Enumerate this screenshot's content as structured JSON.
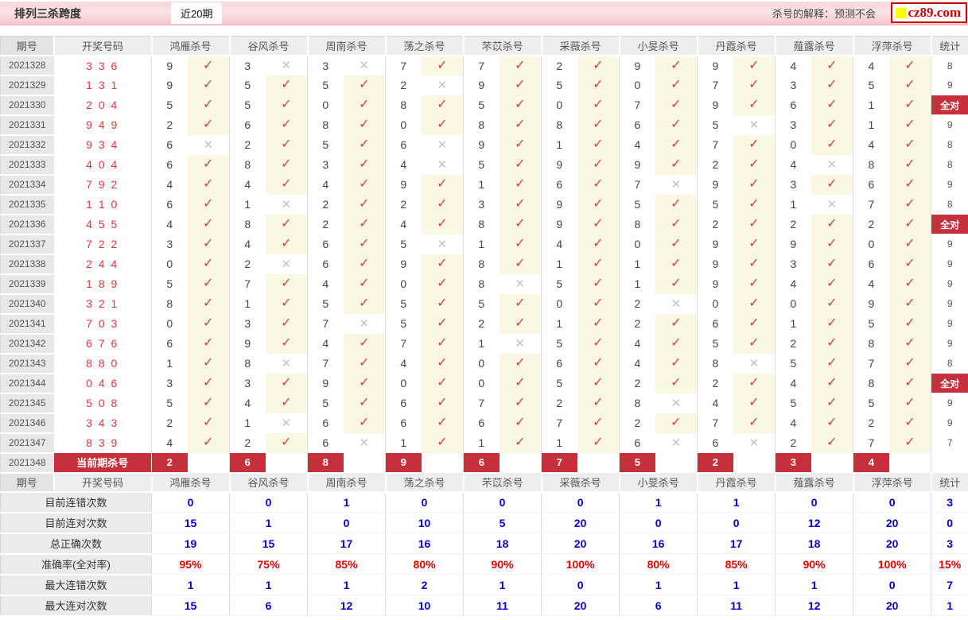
{
  "header": {
    "title": "排列三杀跨度",
    "tab": "近20期",
    "note": "杀号的解释：预测不会",
    "logo": "cz89.com"
  },
  "icons": {
    "check": "✓",
    "cross": "✕",
    "logo_square": "yellow-square"
  },
  "colors": {
    "check": "#d0404e",
    "cross": "#c3c3c3",
    "red_badge": "#c5303c",
    "blue_value": "#0101cb",
    "red_value": "#e60000",
    "pink_bar": "#f3c5cb",
    "winning_number": "#e0383e",
    "logo_red": "#cc0000",
    "logo_yellow": "#ffff00"
  },
  "table": {
    "col_period": "期号",
    "col_numbers": "开奖号码",
    "col_stat": "统计",
    "all_correct_label": "全对",
    "killers": [
      "鸿雁杀号",
      "谷风杀号",
      "周南杀号",
      "荡之杀号",
      "芣苡杀号",
      "采薇杀号",
      "小旻杀号",
      "丹霞杀号",
      "薤露杀号",
      "浮萍杀号"
    ],
    "rows": [
      {
        "period": "2021328",
        "numbers": "3 3 6",
        "cells": [
          {
            "d": "9",
            "ok": true
          },
          {
            "d": "3",
            "ok": false
          },
          {
            "d": "3",
            "ok": false
          },
          {
            "d": "7",
            "ok": true
          },
          {
            "d": "7",
            "ok": true
          },
          {
            "d": "2",
            "ok": true
          },
          {
            "d": "9",
            "ok": true
          },
          {
            "d": "9",
            "ok": true
          },
          {
            "d": "4",
            "ok": true
          },
          {
            "d": "4",
            "ok": true
          }
        ],
        "stat": "8"
      },
      {
        "period": "2021329",
        "numbers": "1 3 1",
        "cells": [
          {
            "d": "9",
            "ok": true
          },
          {
            "d": "5",
            "ok": true
          },
          {
            "d": "5",
            "ok": true
          },
          {
            "d": "2",
            "ok": false
          },
          {
            "d": "9",
            "ok": true
          },
          {
            "d": "5",
            "ok": true
          },
          {
            "d": "0",
            "ok": true
          },
          {
            "d": "7",
            "ok": true
          },
          {
            "d": "3",
            "ok": true
          },
          {
            "d": "5",
            "ok": true
          }
        ],
        "stat": "9"
      },
      {
        "period": "2021330",
        "numbers": "2 0 4",
        "cells": [
          {
            "d": "5",
            "ok": true
          },
          {
            "d": "5",
            "ok": true
          },
          {
            "d": "0",
            "ok": true
          },
          {
            "d": "8",
            "ok": true
          },
          {
            "d": "5",
            "ok": true
          },
          {
            "d": "0",
            "ok": true
          },
          {
            "d": "7",
            "ok": true
          },
          {
            "d": "9",
            "ok": true
          },
          {
            "d": "6",
            "ok": true
          },
          {
            "d": "1",
            "ok": true
          }
        ],
        "stat": "全对"
      },
      {
        "period": "2021331",
        "numbers": "9 4 9",
        "cells": [
          {
            "d": "2",
            "ok": true
          },
          {
            "d": "6",
            "ok": true
          },
          {
            "d": "8",
            "ok": true
          },
          {
            "d": "0",
            "ok": true
          },
          {
            "d": "8",
            "ok": true
          },
          {
            "d": "8",
            "ok": true
          },
          {
            "d": "6",
            "ok": true
          },
          {
            "d": "5",
            "ok": false
          },
          {
            "d": "3",
            "ok": true
          },
          {
            "d": "1",
            "ok": true
          }
        ],
        "stat": "9"
      },
      {
        "period": "2021332",
        "numbers": "9 3 4",
        "cells": [
          {
            "d": "6",
            "ok": false
          },
          {
            "d": "2",
            "ok": true
          },
          {
            "d": "5",
            "ok": true
          },
          {
            "d": "6",
            "ok": false
          },
          {
            "d": "9",
            "ok": true
          },
          {
            "d": "1",
            "ok": true
          },
          {
            "d": "4",
            "ok": true
          },
          {
            "d": "7",
            "ok": true
          },
          {
            "d": "0",
            "ok": true
          },
          {
            "d": "4",
            "ok": true
          }
        ],
        "stat": "8"
      },
      {
        "period": "2021333",
        "numbers": "4 0 4",
        "cells": [
          {
            "d": "6",
            "ok": true
          },
          {
            "d": "8",
            "ok": true
          },
          {
            "d": "3",
            "ok": true
          },
          {
            "d": "4",
            "ok": false
          },
          {
            "d": "5",
            "ok": true
          },
          {
            "d": "9",
            "ok": true
          },
          {
            "d": "9",
            "ok": true
          },
          {
            "d": "2",
            "ok": true
          },
          {
            "d": "4",
            "ok": false
          },
          {
            "d": "8",
            "ok": true
          }
        ],
        "stat": "8"
      },
      {
        "period": "2021334",
        "numbers": "7 9 2",
        "cells": [
          {
            "d": "4",
            "ok": true
          },
          {
            "d": "4",
            "ok": true
          },
          {
            "d": "4",
            "ok": true
          },
          {
            "d": "9",
            "ok": true
          },
          {
            "d": "1",
            "ok": true
          },
          {
            "d": "6",
            "ok": true
          },
          {
            "d": "7",
            "ok": false
          },
          {
            "d": "9",
            "ok": true
          },
          {
            "d": "3",
            "ok": true
          },
          {
            "d": "6",
            "ok": true
          }
        ],
        "stat": "9"
      },
      {
        "period": "2021335",
        "numbers": "1 1 0",
        "cells": [
          {
            "d": "6",
            "ok": true
          },
          {
            "d": "1",
            "ok": false
          },
          {
            "d": "2",
            "ok": true
          },
          {
            "d": "2",
            "ok": true
          },
          {
            "d": "3",
            "ok": true
          },
          {
            "d": "9",
            "ok": true
          },
          {
            "d": "5",
            "ok": true
          },
          {
            "d": "5",
            "ok": true
          },
          {
            "d": "1",
            "ok": false
          },
          {
            "d": "7",
            "ok": true
          }
        ],
        "stat": "8"
      },
      {
        "period": "2021336",
        "numbers": "4 5 5",
        "cells": [
          {
            "d": "4",
            "ok": true
          },
          {
            "d": "8",
            "ok": true
          },
          {
            "d": "2",
            "ok": true
          },
          {
            "d": "4",
            "ok": true
          },
          {
            "d": "8",
            "ok": true
          },
          {
            "d": "9",
            "ok": true
          },
          {
            "d": "8",
            "ok": true
          },
          {
            "d": "2",
            "ok": true
          },
          {
            "d": "2",
            "ok": true
          },
          {
            "d": "2",
            "ok": true
          }
        ],
        "stat": "全对"
      },
      {
        "period": "2021337",
        "numbers": "7 2 2",
        "cells": [
          {
            "d": "3",
            "ok": true
          },
          {
            "d": "4",
            "ok": true
          },
          {
            "d": "6",
            "ok": true
          },
          {
            "d": "5",
            "ok": false
          },
          {
            "d": "1",
            "ok": true
          },
          {
            "d": "4",
            "ok": true
          },
          {
            "d": "0",
            "ok": true
          },
          {
            "d": "9",
            "ok": true
          },
          {
            "d": "9",
            "ok": true
          },
          {
            "d": "0",
            "ok": true
          }
        ],
        "stat": "9"
      },
      {
        "period": "2021338",
        "numbers": "2 4 4",
        "cells": [
          {
            "d": "0",
            "ok": true
          },
          {
            "d": "2",
            "ok": false
          },
          {
            "d": "6",
            "ok": true
          },
          {
            "d": "9",
            "ok": true
          },
          {
            "d": "8",
            "ok": true
          },
          {
            "d": "1",
            "ok": true
          },
          {
            "d": "1",
            "ok": true
          },
          {
            "d": "9",
            "ok": true
          },
          {
            "d": "3",
            "ok": true
          },
          {
            "d": "6",
            "ok": true
          }
        ],
        "stat": "9"
      },
      {
        "period": "2021339",
        "numbers": "1 8 9",
        "cells": [
          {
            "d": "5",
            "ok": true
          },
          {
            "d": "7",
            "ok": true
          },
          {
            "d": "4",
            "ok": true
          },
          {
            "d": "0",
            "ok": true
          },
          {
            "d": "8",
            "ok": false
          },
          {
            "d": "5",
            "ok": true
          },
          {
            "d": "1",
            "ok": true
          },
          {
            "d": "9",
            "ok": true
          },
          {
            "d": "4",
            "ok": true
          },
          {
            "d": "4",
            "ok": true
          }
        ],
        "stat": "9"
      },
      {
        "period": "2021340",
        "numbers": "3 2 1",
        "cells": [
          {
            "d": "8",
            "ok": true
          },
          {
            "d": "1",
            "ok": true
          },
          {
            "d": "5",
            "ok": true
          },
          {
            "d": "5",
            "ok": true
          },
          {
            "d": "5",
            "ok": true
          },
          {
            "d": "0",
            "ok": true
          },
          {
            "d": "2",
            "ok": false
          },
          {
            "d": "0",
            "ok": true
          },
          {
            "d": "0",
            "ok": true
          },
          {
            "d": "9",
            "ok": true
          }
        ],
        "stat": "9"
      },
      {
        "period": "2021341",
        "numbers": "7 0 3",
        "cells": [
          {
            "d": "0",
            "ok": true
          },
          {
            "d": "3",
            "ok": true
          },
          {
            "d": "7",
            "ok": false
          },
          {
            "d": "5",
            "ok": true
          },
          {
            "d": "2",
            "ok": true
          },
          {
            "d": "1",
            "ok": true
          },
          {
            "d": "2",
            "ok": true
          },
          {
            "d": "6",
            "ok": true
          },
          {
            "d": "1",
            "ok": true
          },
          {
            "d": "5",
            "ok": true
          }
        ],
        "stat": "9"
      },
      {
        "period": "2021342",
        "numbers": "6 7 6",
        "cells": [
          {
            "d": "6",
            "ok": true
          },
          {
            "d": "9",
            "ok": true
          },
          {
            "d": "4",
            "ok": true
          },
          {
            "d": "7",
            "ok": true
          },
          {
            "d": "1",
            "ok": false
          },
          {
            "d": "5",
            "ok": true
          },
          {
            "d": "4",
            "ok": true
          },
          {
            "d": "5",
            "ok": true
          },
          {
            "d": "2",
            "ok": true
          },
          {
            "d": "8",
            "ok": true
          }
        ],
        "stat": "9"
      },
      {
        "period": "2021343",
        "numbers": "8 8 0",
        "cells": [
          {
            "d": "1",
            "ok": true
          },
          {
            "d": "8",
            "ok": false
          },
          {
            "d": "7",
            "ok": true
          },
          {
            "d": "4",
            "ok": true
          },
          {
            "d": "0",
            "ok": true
          },
          {
            "d": "6",
            "ok": true
          },
          {
            "d": "4",
            "ok": true
          },
          {
            "d": "8",
            "ok": false
          },
          {
            "d": "5",
            "ok": true
          },
          {
            "d": "7",
            "ok": true
          }
        ],
        "stat": "8"
      },
      {
        "period": "2021344",
        "numbers": "0 4 6",
        "cells": [
          {
            "d": "3",
            "ok": true
          },
          {
            "d": "3",
            "ok": true
          },
          {
            "d": "9",
            "ok": true
          },
          {
            "d": "0",
            "ok": true
          },
          {
            "d": "0",
            "ok": true
          },
          {
            "d": "5",
            "ok": true
          },
          {
            "d": "2",
            "ok": true
          },
          {
            "d": "2",
            "ok": true
          },
          {
            "d": "4",
            "ok": true
          },
          {
            "d": "8",
            "ok": true
          }
        ],
        "stat": "全对"
      },
      {
        "period": "2021345",
        "numbers": "5 0 8",
        "cells": [
          {
            "d": "5",
            "ok": true
          },
          {
            "d": "4",
            "ok": true
          },
          {
            "d": "5",
            "ok": true
          },
          {
            "d": "6",
            "ok": true
          },
          {
            "d": "7",
            "ok": true
          },
          {
            "d": "2",
            "ok": true
          },
          {
            "d": "8",
            "ok": false
          },
          {
            "d": "4",
            "ok": true
          },
          {
            "d": "5",
            "ok": true
          },
          {
            "d": "5",
            "ok": true
          }
        ],
        "stat": "9"
      },
      {
        "period": "2021346",
        "numbers": "3 4 3",
        "cells": [
          {
            "d": "2",
            "ok": true
          },
          {
            "d": "1",
            "ok": false
          },
          {
            "d": "6",
            "ok": true
          },
          {
            "d": "6",
            "ok": true
          },
          {
            "d": "6",
            "ok": true
          },
          {
            "d": "7",
            "ok": true
          },
          {
            "d": "2",
            "ok": true
          },
          {
            "d": "7",
            "ok": true
          },
          {
            "d": "4",
            "ok": true
          },
          {
            "d": "2",
            "ok": true
          }
        ],
        "stat": "9"
      },
      {
        "period": "2021347",
        "numbers": "8 3 9",
        "cells": [
          {
            "d": "4",
            "ok": true
          },
          {
            "d": "2",
            "ok": true
          },
          {
            "d": "6",
            "ok": false
          },
          {
            "d": "1",
            "ok": true
          },
          {
            "d": "1",
            "ok": true
          },
          {
            "d": "1",
            "ok": true
          },
          {
            "d": "6",
            "ok": false
          },
          {
            "d": "6",
            "ok": false
          },
          {
            "d": "2",
            "ok": true
          },
          {
            "d": "7",
            "ok": true
          }
        ],
        "stat": "7"
      }
    ],
    "current": {
      "period": "2021348",
      "label": "当前期杀号",
      "kills": [
        "2",
        "6",
        "8",
        "9",
        "6",
        "7",
        "5",
        "2",
        "3",
        "4"
      ]
    },
    "summary": [
      {
        "label": "目前连错次数",
        "color": "blue",
        "values": [
          "0",
          "0",
          "1",
          "0",
          "0",
          "0",
          "1",
          "1",
          "0",
          "0"
        ],
        "stat": "3"
      },
      {
        "label": "目前连对次数",
        "color": "blue",
        "values": [
          "15",
          "1",
          "0",
          "10",
          "5",
          "20",
          "0",
          "0",
          "12",
          "20"
        ],
        "stat": "0"
      },
      {
        "label": "总正确次数",
        "color": "blue",
        "values": [
          "19",
          "15",
          "17",
          "16",
          "18",
          "20",
          "16",
          "17",
          "18",
          "20"
        ],
        "stat": "3"
      },
      {
        "label": "准确率(全对率)",
        "color": "red",
        "values": [
          "95%",
          "75%",
          "85%",
          "80%",
          "90%",
          "100%",
          "80%",
          "85%",
          "90%",
          "100%"
        ],
        "stat": "15%"
      },
      {
        "label": "最大连错次数",
        "color": "blue",
        "values": [
          "1",
          "1",
          "1",
          "2",
          "1",
          "0",
          "1",
          "1",
          "1",
          "0"
        ],
        "stat": "7"
      },
      {
        "label": "最大连对次数",
        "color": "blue",
        "values": [
          "15",
          "6",
          "12",
          "10",
          "11",
          "20",
          "6",
          "11",
          "12",
          "20"
        ],
        "stat": "1"
      }
    ]
  }
}
